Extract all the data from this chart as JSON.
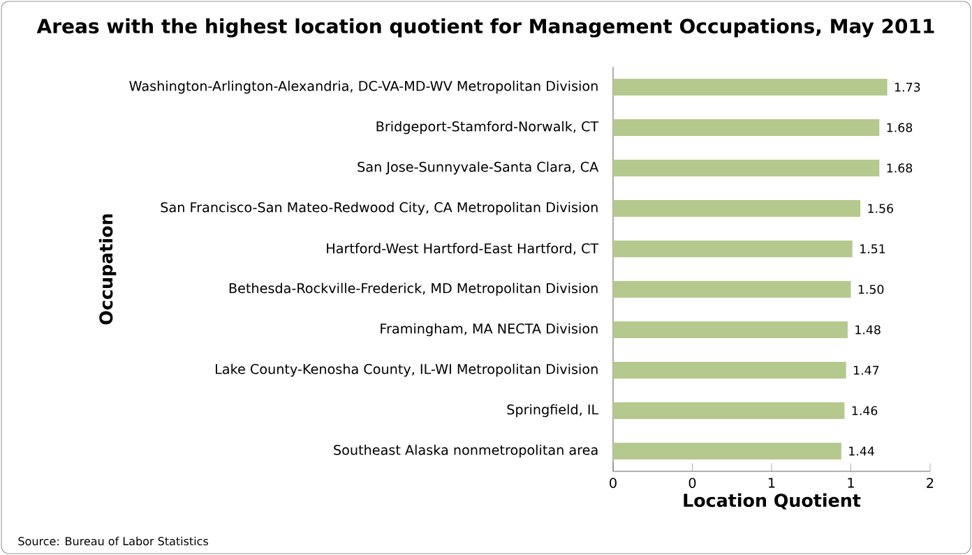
{
  "chart_data": {
    "type": "bar",
    "orientation": "horizontal",
    "title": "Areas with the highest location quotient for Management Occupations, May 2011",
    "xlabel": "Location Quotient",
    "ylabel": "Occupation",
    "categories": [
      "Washington-Arlington-Alexandria, DC-VA-MD-WV Metropolitan Division",
      "Bridgeport-Stamford-Norwalk, CT",
      "San Jose-Sunnyvale-Santa Clara, CA",
      "San Francisco-San Mateo-Redwood City, CA Metropolitan Division",
      "Hartford-West Hartford-East Hartford, CT",
      "Bethesda-Rockville-Frederick, MD Metropolitan Division",
      "Framingham, MA NECTA Division",
      "Lake County-Kenosha County, IL-WI Metropolitan Division",
      "Springfield, IL",
      "Southeast Alaska nonmetropolitan area"
    ],
    "values": [
      1.73,
      1.68,
      1.68,
      1.56,
      1.51,
      1.5,
      1.48,
      1.47,
      1.46,
      1.44
    ],
    "value_labels": [
      "1.73",
      "1.68",
      "1.68",
      "1.56",
      "1.51",
      "1.50",
      "1.48",
      "1.47",
      "1.46",
      "1.44"
    ],
    "color": "#b5c98e",
    "xlim": [
      0,
      2
    ],
    "xticks": [
      0,
      {
        "value": 0.5,
        "label": "0"
      },
      1,
      {
        "value": 1.5,
        "label": "1"
      },
      2
    ],
    "annotations": [
      "Source: Bureau of Labor Statistics"
    ]
  }
}
